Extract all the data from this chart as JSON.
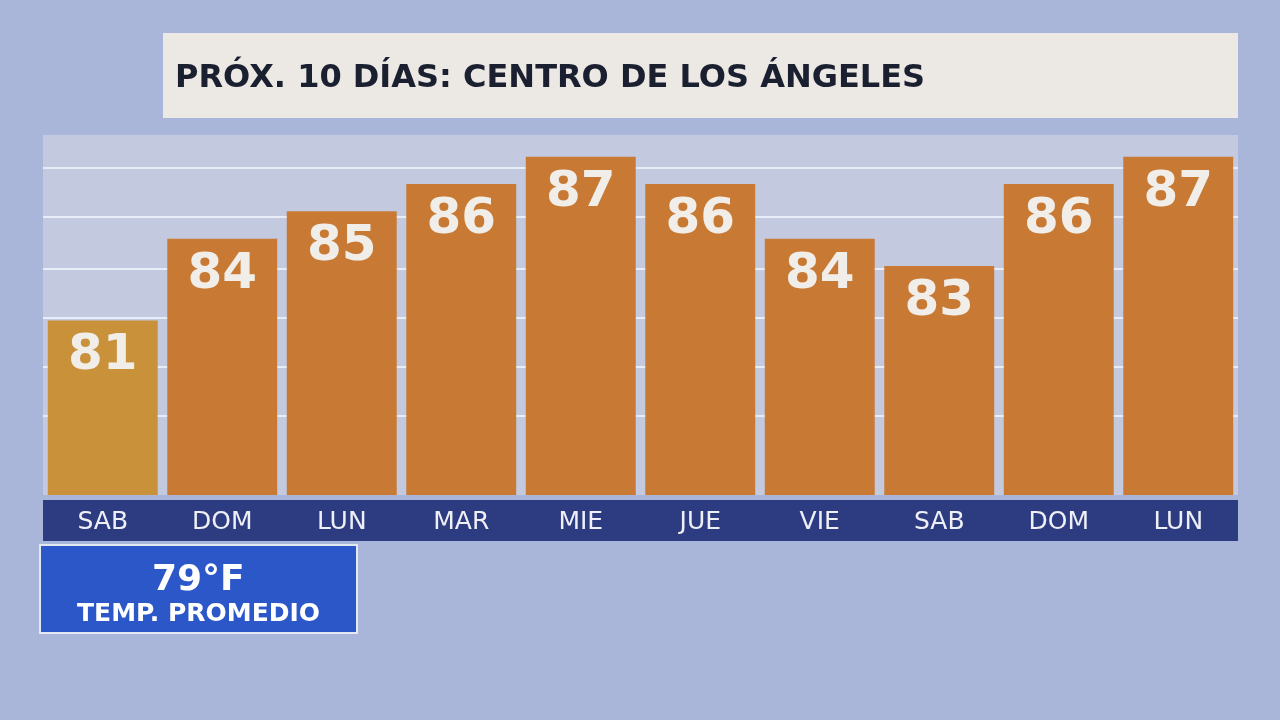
{
  "chart_data": {
    "type": "bar",
    "title": "PRÓX. 10 DÍAS: CENTRO DE LOS ÁNGELES",
    "categories": [
      "SAB",
      "DOM",
      "LUN",
      "MAR",
      "MIE",
      "JUE",
      "VIE",
      "SAB",
      "DOM",
      "LUN"
    ],
    "values": [
      81,
      84,
      85,
      86,
      87,
      86,
      84,
      83,
      86,
      87
    ],
    "colors": [
      "#c8913a",
      "#c87a34",
      "#c87a34",
      "#c87a34",
      "#c87a34",
      "#c87a34",
      "#c87a34",
      "#c87a34",
      "#c87a34",
      "#c87a34"
    ],
    "data_labels": true,
    "ylim": [
      74.6,
      87.8
    ],
    "yticks": [
      {
        "value": 77.5,
        "label": null
      },
      {
        "value": 79.3,
        "label": null
      },
      {
        "value": 81.1,
        "label": null
      },
      {
        "value": 82.9,
        "label": null
      },
      {
        "value": 84.8,
        "label": null
      },
      {
        "value": 86.6,
        "label": null
      }
    ],
    "grid": "y",
    "tick_labels": "x",
    "annotations": [
      "79°F",
      "TEMP. PROMEDIO"
    ]
  }
}
